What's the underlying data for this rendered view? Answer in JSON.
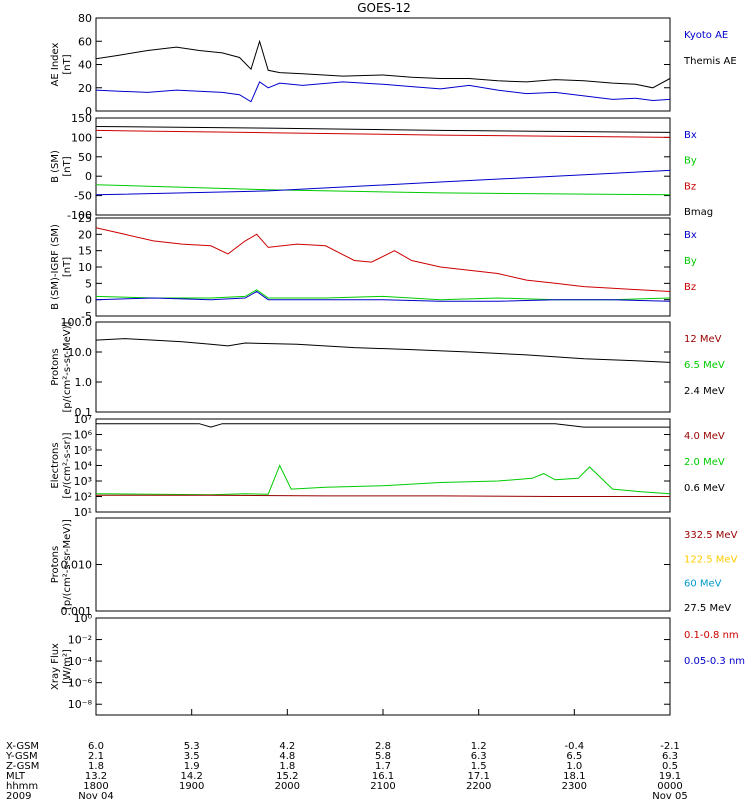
{
  "chart_data": {
    "type": "line",
    "title": "GOES-12",
    "panels": [
      {
        "key": "ae",
        "ylabel": [
          "AE Index",
          "[nT]"
        ],
        "ylim": [
          0,
          80
        ],
        "ticks": [
          {
            "v": 0,
            "t": "0"
          },
          {
            "v": 20,
            "t": "20"
          },
          {
            "v": 40,
            "t": "40"
          },
          {
            "v": 60,
            "t": "60"
          },
          {
            "v": 80,
            "t": "80"
          }
        ],
        "legend": [
          {
            "name": "Kyoto AE",
            "color": "#0000cc"
          },
          {
            "name": "Themis AE",
            "color": "#000000"
          }
        ],
        "series": [
          {
            "name": "Themis AE",
            "color": "#000000",
            "x": [
              0,
              0.04,
              0.09,
              0.14,
              0.18,
              0.22,
              0.25,
              0.27,
              0.285,
              0.3,
              0.32,
              0.36,
              0.43,
              0.5,
              0.55,
              0.6,
              0.65,
              0.7,
              0.75,
              0.8,
              0.85,
              0.9,
              0.94,
              0.97,
              1.0
            ],
            "y": [
              45,
              48,
              52,
              55,
              52,
              50,
              46,
              36,
              60,
              35,
              33,
              32,
              30,
              31,
              29,
              28,
              28,
              26,
              25,
              27,
              26,
              24,
              23,
              20,
              28
            ]
          },
          {
            "name": "Kyoto AE",
            "color": "#0000cc",
            "x": [
              0,
              0.04,
              0.09,
              0.14,
              0.18,
              0.22,
              0.25,
              0.27,
              0.285,
              0.3,
              0.32,
              0.36,
              0.43,
              0.5,
              0.55,
              0.6,
              0.65,
              0.7,
              0.75,
              0.8,
              0.85,
              0.9,
              0.94,
              0.97,
              1.0
            ],
            "y": [
              18,
              17,
              16,
              18,
              17,
              16,
              14,
              8,
              25,
              20,
              24,
              22,
              25,
              23,
              21,
              19,
              22,
              18,
              15,
              16,
              13,
              10,
              11,
              9,
              10
            ]
          }
        ]
      },
      {
        "key": "bsm",
        "ylabel": [
          "B (SM)",
          "[nT]"
        ],
        "ylim": [
          -100,
          150
        ],
        "ticks": [
          {
            "v": -100,
            "t": "-100"
          },
          {
            "v": -50,
            "t": "-50"
          },
          {
            "v": 0,
            "t": "0"
          },
          {
            "v": 50,
            "t": "50"
          },
          {
            "v": 100,
            "t": "100"
          },
          {
            "v": 150,
            "t": "150"
          }
        ],
        "legend": [
          {
            "name": "Bx",
            "color": "#0000cc"
          },
          {
            "name": "By",
            "color": "#00cc00"
          },
          {
            "name": "Bz",
            "color": "#cc0000"
          },
          {
            "name": "Bmag",
            "color": "#000000"
          }
        ],
        "series": [
          {
            "name": "Bmag",
            "color": "#000000",
            "x": [
              0,
              0.3,
              0.6,
              1.0
            ],
            "y": [
              128,
              124,
              118,
              113
            ]
          },
          {
            "name": "Bz",
            "color": "#cc0000",
            "x": [
              0,
              0.3,
              0.6,
              1.0
            ],
            "y": [
              118,
              112,
              106,
              100
            ]
          },
          {
            "name": "By",
            "color": "#00cc00",
            "x": [
              0,
              0.3,
              0.6,
              1.0
            ],
            "y": [
              -22,
              -35,
              -43,
              -48
            ]
          },
          {
            "name": "Bx",
            "color": "#0000cc",
            "x": [
              0,
              0.3,
              0.6,
              1.0
            ],
            "y": [
              -48,
              -38,
              -15,
              15
            ]
          }
        ]
      },
      {
        "key": "bdiff",
        "ylabel": [
          "B (SM)-IGRF (SM)",
          "[nT]"
        ],
        "ylim": [
          -5,
          25
        ],
        "ticks": [
          {
            "v": -5,
            "t": "-5"
          },
          {
            "v": 0,
            "t": "0"
          },
          {
            "v": 5,
            "t": "5"
          },
          {
            "v": 10,
            "t": "10"
          },
          {
            "v": 15,
            "t": "15"
          },
          {
            "v": 20,
            "t": "20"
          },
          {
            "v": 25,
            "t": "25"
          }
        ],
        "legend": [
          {
            "name": "Bx",
            "color": "#0000cc"
          },
          {
            "name": "By",
            "color": "#00cc00"
          },
          {
            "name": "Bz",
            "color": "#cc0000"
          }
        ],
        "series": [
          {
            "name": "Bz",
            "color": "#cc0000",
            "x": [
              0,
              0.05,
              0.1,
              0.15,
              0.2,
              0.23,
              0.26,
              0.28,
              0.3,
              0.35,
              0.4,
              0.45,
              0.48,
              0.52,
              0.55,
              0.6,
              0.65,
              0.7,
              0.75,
              0.8,
              0.85,
              0.9,
              0.95,
              1.0
            ],
            "y": [
              22,
              20,
              18,
              17,
              16.5,
              14,
              18,
              20,
              16,
              17,
              16.5,
              12,
              11.5,
              15,
              12,
              10,
              9,
              8,
              6,
              5,
              4,
              3.5,
              3,
              2.5
            ]
          },
          {
            "name": "By",
            "color": "#00cc00",
            "x": [
              0,
              0.1,
              0.2,
              0.26,
              0.28,
              0.3,
              0.4,
              0.5,
              0.6,
              0.7,
              0.8,
              0.9,
              1.0
            ],
            "y": [
              1,
              0.5,
              0.5,
              1,
              3,
              0.5,
              0.5,
              1,
              0,
              0.5,
              0,
              0,
              0.5
            ]
          },
          {
            "name": "Bx",
            "color": "#0000cc",
            "x": [
              0,
              0.1,
              0.2,
              0.26,
              0.28,
              0.3,
              0.4,
              0.5,
              0.6,
              0.7,
              0.8,
              0.9,
              1.0
            ],
            "y": [
              0,
              0.5,
              0,
              0.5,
              2.5,
              0,
              0,
              0,
              -0.5,
              -0.5,
              0,
              0,
              -0.5
            ]
          }
        ]
      },
      {
        "key": "protons",
        "ylabel": [
          "Protons",
          "[p/(cm²-s-sr-MeV)]"
        ],
        "ylog": true,
        "ylim": [
          0.1,
          100
        ],
        "ticks": [
          {
            "v": 0.1,
            "t": "0.1"
          },
          {
            "v": 1,
            "t": "1.0"
          },
          {
            "v": 10,
            "t": "10.0"
          },
          {
            "v": 100,
            "t": "100.0"
          }
        ],
        "legend": [
          {
            "name": "12 MeV",
            "color": "#990000"
          },
          {
            "name": "6.5 MeV",
            "color": "#00cc00"
          },
          {
            "name": "2.4 MeV",
            "color": "#000000"
          }
        ],
        "series": [
          {
            "name": "2.4 MeV",
            "color": "#000000",
            "x": [
              0,
              0.05,
              0.1,
              0.15,
              0.2,
              0.23,
              0.26,
              0.35,
              0.45,
              0.55,
              0.65,
              0.75,
              0.85,
              0.95,
              1.0
            ],
            "y": [
              25,
              28,
              25,
              22,
              18,
              16,
              20,
              18,
              14,
              12,
              10,
              8,
              6,
              5,
              4.5
            ]
          }
        ]
      },
      {
        "key": "electrons",
        "ylabel": [
          "Electrons",
          "[e/(cm²-s-sr)]"
        ],
        "ylog": true,
        "ylim": [
          10,
          10000000
        ],
        "ticks": [
          {
            "v": 10,
            "t": "10¹"
          },
          {
            "v": 100,
            "t": "10²"
          },
          {
            "v": 1000,
            "t": "10³"
          },
          {
            "v": 10000,
            "t": "10⁴"
          },
          {
            "v": 100000,
            "t": "10⁵"
          },
          {
            "v": 1000000,
            "t": "10⁶"
          },
          {
            "v": 10000000,
            "t": "10⁷"
          }
        ],
        "legend": [
          {
            "name": "4.0 MeV",
            "color": "#990000"
          },
          {
            "name": "2.0 MeV",
            "color": "#00cc00"
          },
          {
            "name": "0.6 MeV",
            "color": "#000000"
          }
        ],
        "series": [
          {
            "name": "0.6 MeV",
            "color": "#000000",
            "x": [
              0,
              0.1,
              0.18,
              0.2,
              0.22,
              0.26,
              0.4,
              0.6,
              0.8,
              0.85,
              0.88,
              1.0
            ],
            "y": [
              5000000,
              5000000,
              5000000,
              3000000,
              5000000,
              5000000,
              5000000,
              5000000,
              5000000,
              3000000,
              3000000,
              3000000
            ]
          },
          {
            "name": "2.0 MeV",
            "color": "#00cc00",
            "x": [
              0,
              0.1,
              0.2,
              0.26,
              0.3,
              0.32,
              0.34,
              0.4,
              0.5,
              0.6,
              0.7,
              0.76,
              0.78,
              0.8,
              0.84,
              0.86,
              0.9,
              0.95,
              1.0
            ],
            "y": [
              150,
              140,
              130,
              150,
              140,
              10000,
              300,
              400,
              500,
              800,
              1000,
              1500,
              3000,
              1200,
              1500,
              8000,
              300,
              200,
              150
            ]
          },
          {
            "name": "4.0 MeV",
            "color": "#990000",
            "x": [
              0,
              0.2,
              0.4,
              0.6,
              0.8,
              1.0
            ],
            "y": [
              120,
              120,
              110,
              110,
              100,
              100
            ]
          }
        ]
      },
      {
        "key": "hiprotons",
        "ylabel": [
          "Protons",
          "[p/(cm²-s-sr-MeV)]"
        ],
        "ylog": true,
        "ylim": [
          0.001,
          0.1
        ],
        "ticks": [
          {
            "v": 0.001,
            "t": "0.001"
          },
          {
            "v": 0.01,
            "t": "0.010"
          }
        ],
        "legend": [
          {
            "name": "332.5 MeV",
            "color": "#990000"
          },
          {
            "name": "122.5 MeV",
            "color": "#ffcc00"
          },
          {
            "name": "60 MeV",
            "color": "#0099cc"
          },
          {
            "name": "27.5 MeV",
            "color": "#000000"
          }
        ],
        "series": []
      },
      {
        "key": "xray",
        "ylabel": [
          "Xray Flux",
          "[W/m²]"
        ],
        "ylog": true,
        "ylim": [
          1e-09,
          1
        ],
        "ticks": [
          {
            "v": 1,
            "t": "10⁰"
          },
          {
            "v": 0.01,
            "t": "10⁻²"
          },
          {
            "v": 0.0001,
            "t": "10⁻⁴"
          },
          {
            "v": 1e-06,
            "t": "10⁻⁶"
          },
          {
            "v": 1e-08,
            "t": "10⁻⁸"
          }
        ],
        "legend": [
          {
            "name": "0.1-0.8 nm",
            "color": "#cc0000"
          },
          {
            "name": "0.05-0.3 nm",
            "color": "#0000cc"
          }
        ],
        "series": []
      }
    ],
    "xaxis": {
      "row_labels": [
        "X-GSM",
        "Y-GSM",
        "Z-GSM",
        "MLT",
        "hhmm",
        "2009"
      ],
      "columns": [
        {
          "x": 0.0,
          "values": [
            "6.0",
            "2.1",
            "1.8",
            "13.2",
            "1800",
            "Nov 04"
          ]
        },
        {
          "x": 0.1667,
          "values": [
            "5.3",
            "3.5",
            "1.9",
            "14.2",
            "1900",
            ""
          ]
        },
        {
          "x": 0.3333,
          "values": [
            "4.2",
            "4.8",
            "1.8",
            "15.2",
            "2000",
            ""
          ]
        },
        {
          "x": 0.5,
          "values": [
            "2.8",
            "5.8",
            "1.7",
            "16.1",
            "2100",
            ""
          ]
        },
        {
          "x": 0.6667,
          "values": [
            "1.2",
            "6.3",
            "1.5",
            "17.1",
            "2200",
            ""
          ]
        },
        {
          "x": 0.8333,
          "values": [
            "-0.4",
            "6.5",
            "1.0",
            "18.1",
            "2300",
            ""
          ]
        },
        {
          "x": 1.0,
          "values": [
            "-2.1",
            "6.3",
            "0.5",
            "19.1",
            "0000",
            "Nov 05"
          ]
        }
      ]
    }
  }
}
